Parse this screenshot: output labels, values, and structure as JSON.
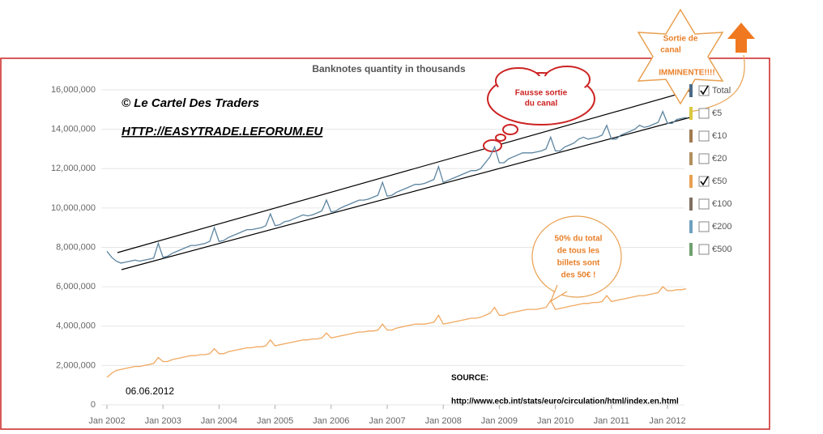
{
  "chart_data": {
    "type": "line",
    "title": "Banknotes quantity in thousands",
    "categories": [
      "Jan 2002",
      null,
      null,
      null,
      null,
      null,
      null,
      null,
      null,
      null,
      null,
      null,
      "Jan 2003",
      null,
      null,
      null,
      null,
      null,
      null,
      null,
      null,
      null,
      null,
      null,
      "Jan 2004",
      null,
      null,
      null,
      null,
      null,
      null,
      null,
      null,
      null,
      null,
      null,
      "Jan 2005",
      null,
      null,
      null,
      null,
      null,
      null,
      null,
      null,
      null,
      null,
      null,
      "Jan 2006",
      null,
      null,
      null,
      null,
      null,
      null,
      null,
      null,
      null,
      null,
      null,
      "Jan 2007",
      null,
      null,
      null,
      null,
      null,
      null,
      null,
      null,
      null,
      null,
      null,
      "Jan 2008",
      null,
      null,
      null,
      null,
      null,
      null,
      null,
      null,
      null,
      null,
      null,
      "Jan 2009",
      null,
      null,
      null,
      null,
      null,
      null,
      null,
      null,
      null,
      null,
      null,
      "Jan 2010",
      null,
      null,
      null,
      null,
      null,
      null,
      null,
      null,
      null,
      null,
      null,
      "Jan 2011",
      null,
      null,
      null,
      null,
      null,
      null,
      null,
      null,
      null,
      null,
      null,
      "Jan 2012",
      null,
      null,
      null,
      null
    ],
    "series": [
      {
        "name": "Total",
        "color": "#5b84a0",
        "values": [
          7800000,
          7500000,
          7300000,
          7200000,
          7250000,
          7300000,
          7350000,
          7300000,
          7350000,
          7400000,
          7450000,
          8200000,
          7500000,
          7550000,
          7700000,
          7800000,
          7900000,
          8000000,
          8100000,
          8100000,
          8150000,
          8200000,
          8300000,
          9000000,
          8300000,
          8350000,
          8500000,
          8600000,
          8700000,
          8800000,
          8900000,
          8900000,
          8950000,
          9000000,
          9100000,
          9700000,
          9100000,
          9150000,
          9300000,
          9350000,
          9450000,
          9550000,
          9650000,
          9600000,
          9650000,
          9750000,
          9850000,
          10400000,
          9800000,
          9850000,
          10000000,
          10100000,
          10200000,
          10300000,
          10400000,
          10400000,
          10450000,
          10550000,
          10650000,
          11300000,
          10600000,
          10650000,
          10800000,
          10900000,
          11000000,
          11100000,
          11200000,
          11200000,
          11250000,
          11350000,
          11450000,
          12100000,
          11300000,
          11400000,
          11500000,
          11600000,
          11700000,
          11800000,
          11900000,
          11900000,
          12000000,
          12300000,
          12600000,
          13100000,
          12300000,
          12300000,
          12500000,
          12600000,
          12700000,
          12800000,
          12800000,
          12800000,
          12850000,
          12900000,
          13000000,
          13600000,
          12900000,
          12900000,
          13100000,
          13200000,
          13300000,
          13500000,
          13600000,
          13500000,
          13550000,
          13600000,
          13700000,
          14200000,
          13500000,
          13500000,
          13700000,
          13800000,
          13900000,
          14000000,
          14200000,
          14100000,
          14150000,
          14250000,
          14350000,
          14900000,
          14300000,
          14300000,
          14500000,
          14550000,
          14600000
        ]
      },
      {
        "name": "€50",
        "color": "#f0a860",
        "values": [
          1400000,
          1600000,
          1750000,
          1800000,
          1850000,
          1900000,
          1950000,
          1950000,
          2000000,
          2050000,
          2100000,
          2400000,
          2200000,
          2200000,
          2300000,
          2350000,
          2400000,
          2450000,
          2500000,
          2500000,
          2550000,
          2550000,
          2600000,
          2850000,
          2600000,
          2600000,
          2700000,
          2750000,
          2800000,
          2850000,
          2900000,
          2900000,
          2950000,
          2950000,
          3000000,
          3300000,
          3000000,
          3050000,
          3100000,
          3150000,
          3200000,
          3250000,
          3300000,
          3300000,
          3350000,
          3350000,
          3400000,
          3650000,
          3400000,
          3450000,
          3500000,
          3550000,
          3600000,
          3650000,
          3700000,
          3700000,
          3750000,
          3750000,
          3800000,
          4100000,
          3800000,
          3800000,
          3900000,
          3950000,
          4000000,
          4050000,
          4100000,
          4100000,
          4100000,
          4150000,
          4200000,
          4550000,
          4100000,
          4150000,
          4200000,
          4250000,
          4300000,
          4350000,
          4400000,
          4400000,
          4450000,
          4550000,
          4650000,
          4950000,
          4550000,
          4550000,
          4650000,
          4700000,
          4750000,
          4800000,
          4850000,
          4850000,
          4850000,
          4900000,
          4950000,
          5300000,
          4850000,
          4900000,
          4950000,
          5000000,
          5050000,
          5100000,
          5150000,
          5150000,
          5200000,
          5200000,
          5250000,
          5550000,
          5250000,
          5300000,
          5350000,
          5400000,
          5450000,
          5500000,
          5550000,
          5550000,
          5600000,
          5650000,
          5700000,
          6000000,
          5800000,
          5800000,
          5850000,
          5850000,
          5900000
        ]
      }
    ],
    "ylim": [
      0,
      16000000
    ],
    "yticks": [
      0,
      {
        "value": 2000000,
        "label": "2,000,000"
      },
      {
        "value": 4000000,
        "label": "4,000,000"
      },
      {
        "value": 6000000,
        "label": "6,000,000"
      },
      {
        "value": 8000000,
        "label": "8,000,000"
      },
      {
        "value": 10000000,
        "label": "10,000,000"
      },
      {
        "value": 12000000,
        "label": "12,000,000"
      },
      {
        "value": 14000000,
        "label": "14,000,000"
      },
      {
        "value": 16000000,
        "label": "16,000,000"
      }
    ],
    "grid": true,
    "legend_items": [
      {
        "name": "Total",
        "color": "#4b6a88",
        "checked": true
      },
      {
        "name": "€5",
        "color": "#d8c840",
        "checked": false
      },
      {
        "name": "€10",
        "color": "#a07a50",
        "checked": false
      },
      {
        "name": "€20",
        "color": "#b09060",
        "checked": false
      },
      {
        "name": "€50",
        "color": "#e8a050",
        "checked": true
      },
      {
        "name": "€100",
        "color": "#807060",
        "checked": false
      },
      {
        "name": "€200",
        "color": "#70a0c0",
        "checked": false
      },
      {
        "name": "€500",
        "color": "#70a070",
        "checked": false
      }
    ],
    "annotations": {
      "copyright": "© Le Cartel Des Traders",
      "site": "HTTP://EASYTRADE.LEFORUM.EU",
      "false_breakout": [
        "Fausse sortie",
        "du canal"
      ],
      "breakout": [
        "Sortie de",
        "canal",
        "IMMINENTE!!!!"
      ],
      "share": [
        "50% du total",
        "de tous les",
        "billets sont",
        "des 50€ !"
      ],
      "date": "06.06.2012",
      "source_label": "SOURCE:",
      "source_url": "http://www.ecb.int/stats/euro/circulation/html/index.en.html"
    }
  }
}
